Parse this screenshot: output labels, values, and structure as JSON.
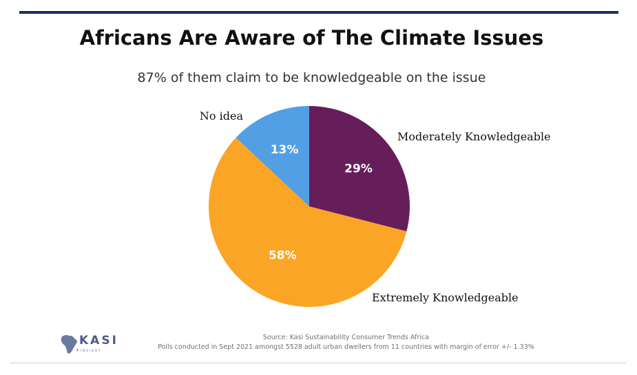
{
  "header": {
    "title": "Africans Are Aware of The Climate Issues",
    "subtitle": "87% of them claim to be knowledgeable on the issue"
  },
  "chart_data": {
    "type": "pie",
    "title": "Africans Are Aware of The Climate Issues",
    "subtitle": "87% of them claim to be knowledgeable on the issue",
    "categories": [
      "Moderately Knowledgeable",
      "Extremely Knowledgeable",
      "No idea"
    ],
    "values": [
      29,
      58,
      13
    ],
    "data_labels": [
      "29%",
      "58%",
      "13%"
    ],
    "colors": [
      "#661e5a",
      "#fba526",
      "#529fe3"
    ],
    "start_angle": "12 o'clock, clockwise",
    "legend": "labels placed beside slices"
  },
  "footer": {
    "source": "Source: Kasi Sustainability Consumer Trends Africa",
    "note": "Polls conducted in Sept 2021 amongst 5528 adult urban dwellers from 11 countries with margin of error +/- 1.33%"
  },
  "logo": {
    "word": "KASI",
    "tagline": "INSIGHT",
    "icon": "africa-map-icon",
    "color": "#4a5a86"
  },
  "colors": {
    "rule": "#1f2a6b"
  }
}
